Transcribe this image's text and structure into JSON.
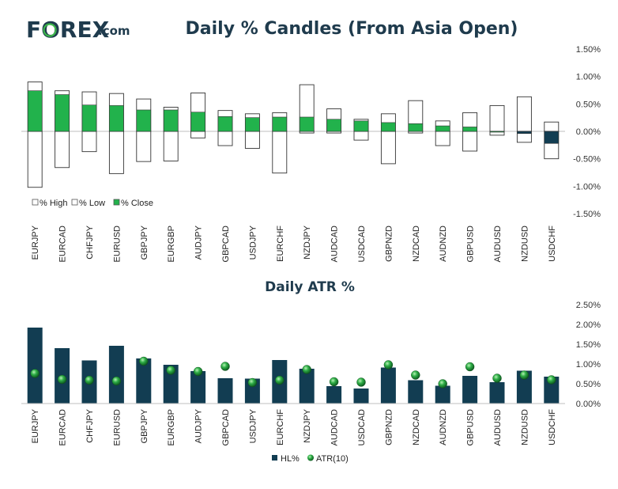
{
  "logo": {
    "text": "FOREX",
    "suffix": ".com"
  },
  "colors": {
    "green": "#22b24c",
    "navy": "#123d52",
    "marker": "#1e9a40",
    "outline": "#333333",
    "title": "#1f3b4d",
    "logoGreen": "#3cb54a"
  },
  "chart_data": [
    {
      "type": "candlestick",
      "title": "Daily % Candles (From Asia Open)",
      "categories": [
        "EURJPY",
        "EURCAD",
        "CHFJPY",
        "EURUSD",
        "GBPJPY",
        "EURGBP",
        "AUDJPY",
        "GBPCAD",
        "USDJPY",
        "EURCHF",
        "NZDJPY",
        "AUDCAD",
        "USDCAD",
        "GBPNZD",
        "NZDCAD",
        "AUDNZD",
        "GBPUSD",
        "AUDUSD",
        "NZDUSD",
        "USDCHF"
      ],
      "series": [
        {
          "name": "% High",
          "values": [
            0.9,
            0.74,
            0.72,
            0.69,
            0.59,
            0.44,
            0.7,
            0.38,
            0.32,
            0.34,
            0.85,
            0.41,
            0.22,
            0.32,
            0.56,
            0.19,
            0.34,
            0.47,
            0.63,
            0.17
          ]
        },
        {
          "name": "% Low",
          "values": [
            -1.02,
            -0.66,
            -0.37,
            -0.77,
            -0.55,
            -0.54,
            -0.12,
            -0.26,
            -0.31,
            -0.76,
            -0.03,
            -0.03,
            -0.16,
            -0.59,
            -0.03,
            -0.26,
            -0.36,
            -0.07,
            -0.2,
            -0.5
          ]
        },
        {
          "name": "% Close",
          "values": [
            0.74,
            0.67,
            0.48,
            0.47,
            0.39,
            0.39,
            0.35,
            0.27,
            0.25,
            0.26,
            0.26,
            0.22,
            0.19,
            0.16,
            0.14,
            0.1,
            0.08,
            0.0,
            -0.04,
            -0.22
          ]
        }
      ],
      "ylim": [
        -1.5,
        1.5
      ],
      "yticks": [
        "1.50%",
        "1.00%",
        "0.50%",
        "0.00%",
        "-0.50%",
        "-1.00%",
        "-1.50%"
      ],
      "legend": [
        "% High",
        "% Low",
        "% Close"
      ],
      "legend_position": "bottom-left"
    },
    {
      "type": "bar+scatter",
      "title": "Daily ATR %",
      "categories": [
        "EURJPY",
        "EURCAD",
        "CHFJPY",
        "EURUSD",
        "GBPJPY",
        "EURGBP",
        "AUDJPY",
        "GBPCAD",
        "USDJPY",
        "EURCHF",
        "NZDJPY",
        "AUDCAD",
        "USDCAD",
        "GBPNZD",
        "NZDCAD",
        "AUDNZD",
        "GBPUSD",
        "AUDUSD",
        "NZDUSD",
        "USDCHF"
      ],
      "series": [
        {
          "name": "HL%",
          "values": [
            1.92,
            1.4,
            1.09,
            1.46,
            1.14,
            0.98,
            0.82,
            0.64,
            0.63,
            1.1,
            0.88,
            0.44,
            0.38,
            0.91,
            0.59,
            0.45,
            0.7,
            0.54,
            0.83,
            0.68
          ]
        },
        {
          "name": "ATR(10)",
          "values": [
            0.76,
            0.61,
            0.59,
            0.57,
            1.07,
            0.84,
            0.81,
            0.94,
            0.53,
            0.59,
            0.86,
            0.55,
            0.54,
            0.98,
            0.72,
            0.5,
            0.93,
            0.64,
            0.72,
            0.6
          ]
        }
      ],
      "ylim": [
        0,
        2.5
      ],
      "yticks": [
        "2.50%",
        "2.00%",
        "1.50%",
        "1.00%",
        "0.50%",
        "0.00%"
      ],
      "legend": [
        "HL%",
        "ATR(10)"
      ],
      "legend_position": "bottom-center"
    }
  ]
}
